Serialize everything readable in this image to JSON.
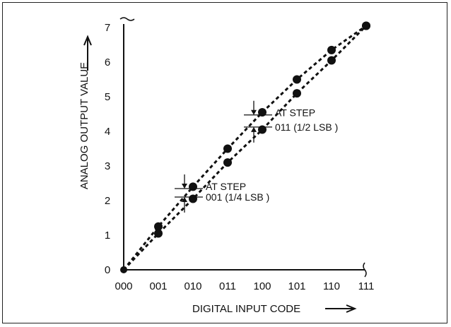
{
  "chart_data": {
    "type": "line",
    "title": "",
    "xlabel": "DIGITAL INPUT CODE",
    "ylabel": "ANALOG OUTPUT VALUE",
    "x_categories": [
      "000",
      "001",
      "010",
      "011",
      "100",
      "101",
      "110",
      "111"
    ],
    "ylim": [
      0,
      7
    ],
    "y_ticks": [
      "0",
      "1",
      "2",
      "3",
      "4",
      "5",
      "6",
      "7"
    ],
    "grid": false,
    "series": [
      {
        "name": "",
        "points": [
          {
            "x": "000",
            "y": 0
          },
          {
            "x": "001",
            "y": 1.25
          },
          {
            "x": "010",
            "y": 2.4
          },
          {
            "x": "011",
            "y": 3.5
          },
          {
            "x": "100",
            "y": 4.55
          },
          {
            "x": "101",
            "y": 5.5
          },
          {
            "x": "110",
            "y": 6.35
          },
          {
            "x": "111",
            "y": 7.05
          }
        ]
      },
      {
        "name": "",
        "points": [
          {
            "x": "000",
            "y": 0
          },
          {
            "x": "001",
            "y": 1.05
          },
          {
            "x": "010",
            "y": 2.05
          },
          {
            "x": "011",
            "y": 3.1
          },
          {
            "x": "100",
            "y": 4.05
          },
          {
            "x": "101",
            "y": 5.1
          },
          {
            "x": "110",
            "y": 6.05
          },
          {
            "x": "111",
            "y": 7.05
          }
        ]
      }
    ],
    "annotations": [
      {
        "at": "010",
        "line1": "AT STEP",
        "line2": "001 (1/4 LSB )"
      },
      {
        "at": "100",
        "line1": "AT STEP",
        "line2": "011 (1/2 LSB )"
      }
    ],
    "colors": {
      "line": "#111111",
      "marker": "#111111"
    }
  }
}
